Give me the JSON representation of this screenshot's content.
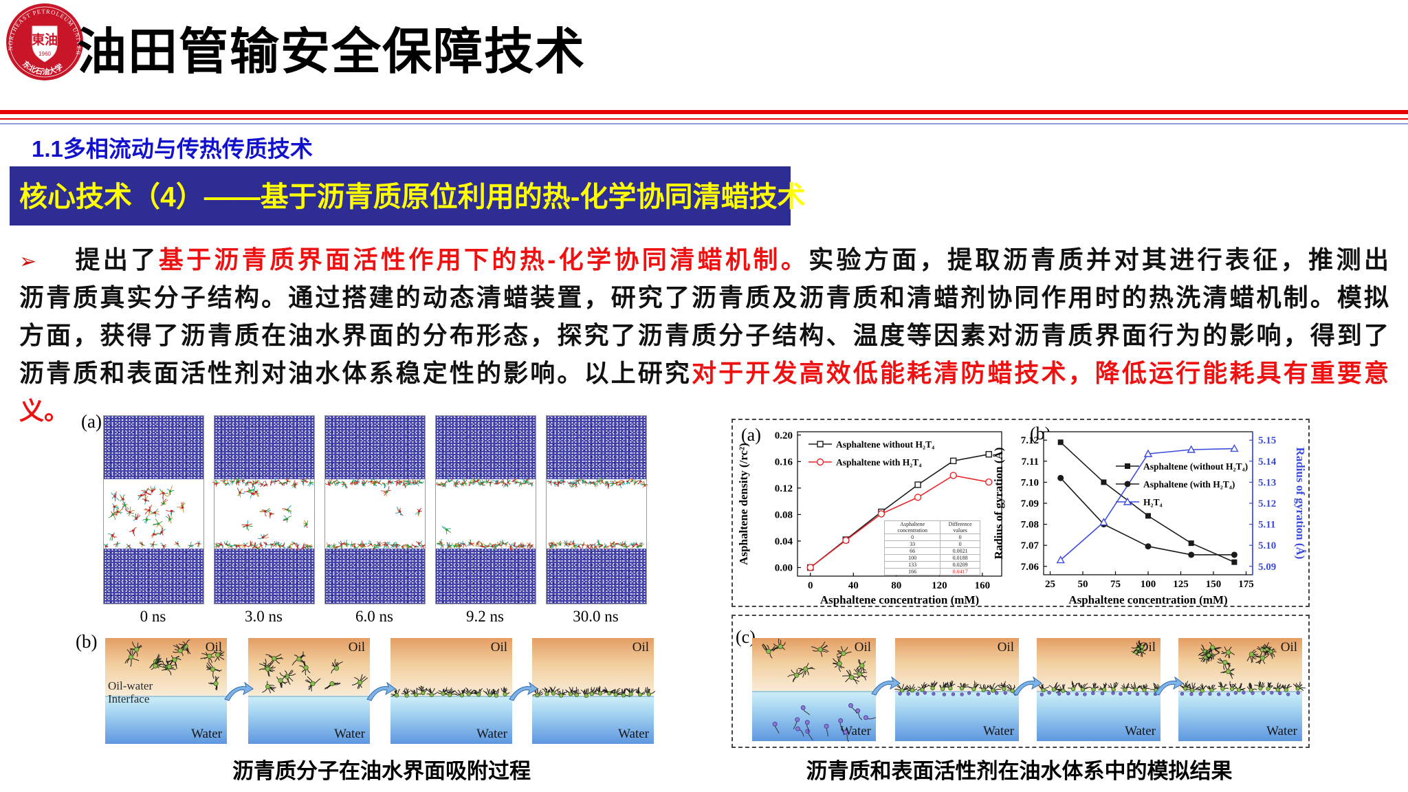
{
  "header": {
    "title": "油田管输安全保障技术",
    "logo": {
      "ring_text": "NORTHEAST PETROLEUM UNIVERSITY",
      "center_chars": "東油",
      "year": "1960",
      "bottom_text": "东北石油大学"
    }
  },
  "section": {
    "heading": "1.1多相流动与传热传质技术",
    "heading_color": "#1212cc",
    "banner_text": "核心技术（4）——基于沥青质原位利用的热-化学协同清蜡技术",
    "banner_bg": "#2d2d93",
    "banner_color": "#ffff00"
  },
  "paragraph": {
    "lines": [
      {
        "segments": [
          {
            "text": "➢",
            "color": "#cc1111",
            "cls": "arrow"
          },
          {
            "text": "提出了",
            "color": "#111111"
          },
          {
            "text": "基于沥青质界面活性作用下的热-化学协同清蜡机制。",
            "color": "#ee1111"
          },
          {
            "text": "实验方面，提取沥青质并对其进行表征，推测出",
            "color": "#111111"
          }
        ]
      },
      {
        "segments": [
          {
            "text": "沥青质真实分子结构。通过搭建的动态清蜡装置，研究了沥青质及沥青质和清蜡剂协同作用时的热洗清蜡机制。模拟",
            "color": "#111111"
          }
        ]
      },
      {
        "segments": [
          {
            "text": "方面，获得了沥青质在油水界面的分布形态，探究了沥青质分子结构、温度等因素对沥青质界面行为的影响，得到了",
            "color": "#111111"
          }
        ]
      },
      {
        "segments": [
          {
            "text": "沥青质和表面活性剂对油水体系稳定性的影响。以上研究",
            "color": "#111111"
          },
          {
            "text": "对于开发高效低能耗清防蜡技术，降低运行能耗具有重要意",
            "color": "#ee1111"
          }
        ]
      },
      {
        "justify": false,
        "segments": [
          {
            "text": "义。",
            "color": "#ee1111"
          }
        ]
      }
    ]
  },
  "figures": {
    "left_a": {
      "label": "(a)",
      "time_labels": [
        "0 ns",
        "3.0 ns",
        "6.0 ns",
        "9.2 ns",
        "30.0 ns"
      ]
    },
    "left_b": {
      "label": "(b)",
      "oil_label": "Oil",
      "water_label": "Water",
      "interface_label_line1": "Oil-water",
      "interface_label_line2": "Interface",
      "caption": "沥青质分子在油水界面吸附过程"
    },
    "right": {
      "label": "(c)",
      "oil_label": "Oil",
      "water_label": "Water",
      "caption": "沥青质和表面活性剂在油水体系中的模拟结果"
    }
  },
  "chart_data": [
    {
      "type": "line",
      "panel_label": "(a)",
      "xlabel": "Asphaltene concentration (mM)",
      "ylabel": "Asphaltene density (/rc²)",
      "x": [
        0,
        33,
        66,
        100,
        133,
        166
      ],
      "xlim": [
        -12,
        178
      ],
      "ylim": [
        -0.013,
        0.205
      ],
      "xticks": [
        0,
        40,
        80,
        120,
        160
      ],
      "yticks": [
        "0.00",
        "0.04",
        "0.08",
        "0.12",
        "0.16",
        "0.20"
      ],
      "grid": false,
      "legend_position": "top-left",
      "series": [
        {
          "name": "Asphaltene without H₂T₄",
          "color": "#1a1a1a",
          "marker": "square-open",
          "values": [
            0.0,
            0.042,
            0.084,
            0.125,
            0.161,
            0.171
          ]
        },
        {
          "name": "Asphaltene with H₂T₄",
          "color": "#e8262a",
          "marker": "circle-open",
          "values": [
            0.0,
            0.041,
            0.081,
            0.106,
            0.139,
            0.129
          ]
        }
      ],
      "inset_table": {
        "headers": [
          "Asphaltene concentration",
          "Difference values"
        ],
        "rows": [
          [
            "0",
            "0"
          ],
          [
            "33",
            "0"
          ],
          [
            "66",
            "0.0021"
          ],
          [
            "100",
            "0.0188"
          ],
          [
            "133",
            "0.0209"
          ],
          [
            "166",
            "0.0417"
          ]
        ],
        "highlight_last_value_color": "#e8262a"
      }
    },
    {
      "type": "line",
      "panel_label": "(b)",
      "xlabel": "Asphaltene concentration (mM)",
      "ylabel_left": "Radius of gyration (Å)",
      "ylabel_right": "Radius of gyration (Å)",
      "x": [
        33,
        66,
        100,
        133,
        166
      ],
      "xlim": [
        20,
        180
      ],
      "xticks": [
        25,
        50,
        75,
        100,
        125,
        150,
        175
      ],
      "ylim_left": [
        7.056,
        7.124
      ],
      "yticks_left": [
        "7.06",
        "7.07",
        "7.08",
        "7.09",
        "7.10",
        "7.11",
        "7.12"
      ],
      "ylim_right": [
        5.086,
        5.154
      ],
      "yticks_right": [
        "5.09",
        "5.10",
        "5.11",
        "5.12",
        "5.13",
        "5.14",
        "5.15"
      ],
      "right_axis_color": "#3b4bdd",
      "grid": false,
      "legend_position": "center-right",
      "series": [
        {
          "name": "Asphaltene (without H₂T₄)",
          "color": "#1a1a1a",
          "marker": "square-filled",
          "axis": "left",
          "values": [
            7.119,
            7.1,
            7.084,
            7.071,
            7.062
          ]
        },
        {
          "name": "Asphaltene (with H₂T₄)",
          "color": "#1a1a1a",
          "marker": "circle-filled",
          "axis": "left",
          "values": [
            7.102,
            7.08,
            7.0695,
            7.0655,
            7.0655
          ]
        },
        {
          "name": "H₂T₄",
          "color": "#3b4bdd",
          "marker": "triangle-open",
          "axis": "right",
          "values": [
            5.093,
            5.111,
            5.1435,
            5.1455,
            5.146
          ]
        }
      ]
    }
  ]
}
